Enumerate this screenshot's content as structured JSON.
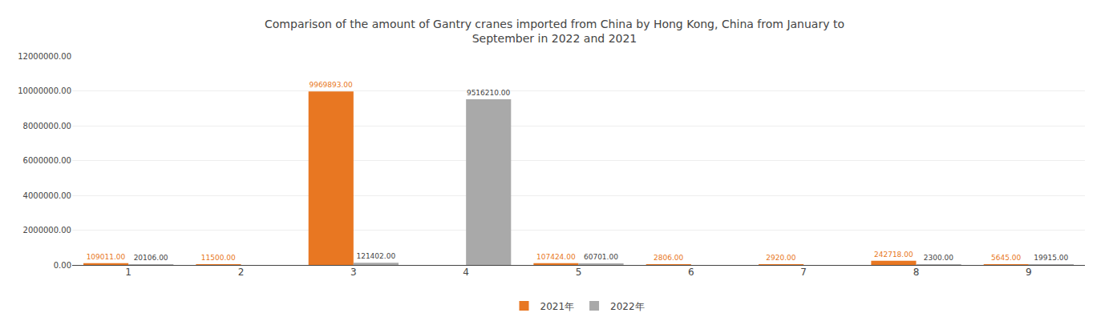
{
  "chart_data": {
    "type": "bar",
    "title": "Comparison of the amount of Gantry cranes imported from China by Hong Kong, China from January to\nSeptember in 2022 and 2021",
    "categories": [
      1,
      2,
      3,
      4,
      5,
      6,
      7,
      8,
      9
    ],
    "series": [
      {
        "name": "2021年",
        "color": "#E87722",
        "values": [
          109011,
          11500,
          9969893,
          0,
          107424,
          2806,
          2920,
          242718,
          5645
        ],
        "value_labels": [
          "109011.00",
          "11500.00",
          "9969893.00",
          null,
          "107424.00",
          "2806.00",
          "2920.00",
          "242718.00",
          "5645.00"
        ]
      },
      {
        "name": "2022年",
        "color": "#A9A9A9",
        "values": [
          20106,
          0,
          121402,
          9516210,
          60701,
          0,
          0,
          2300,
          19915
        ],
        "value_labels": [
          "20106.00",
          null,
          "121402.00",
          "9516210.00",
          "60701.00",
          null,
          null,
          "2300.00",
          "19915.00"
        ]
      }
    ],
    "ylim": [
      0,
      12000000
    ],
    "yticks": [
      {
        "value": 0,
        "label": "0.00"
      },
      {
        "value": 2000000,
        "label": "2000000.00"
      },
      {
        "value": 4000000,
        "label": "4000000.00"
      },
      {
        "value": 6000000,
        "label": "6000000.00"
      },
      {
        "value": 8000000,
        "label": "8000000.00"
      },
      {
        "value": 10000000,
        "label": "10000000.00"
      },
      {
        "value": 12000000,
        "label": "12000000.00"
      }
    ],
    "grid": true,
    "legend": "bottom",
    "data_labels": true
  }
}
